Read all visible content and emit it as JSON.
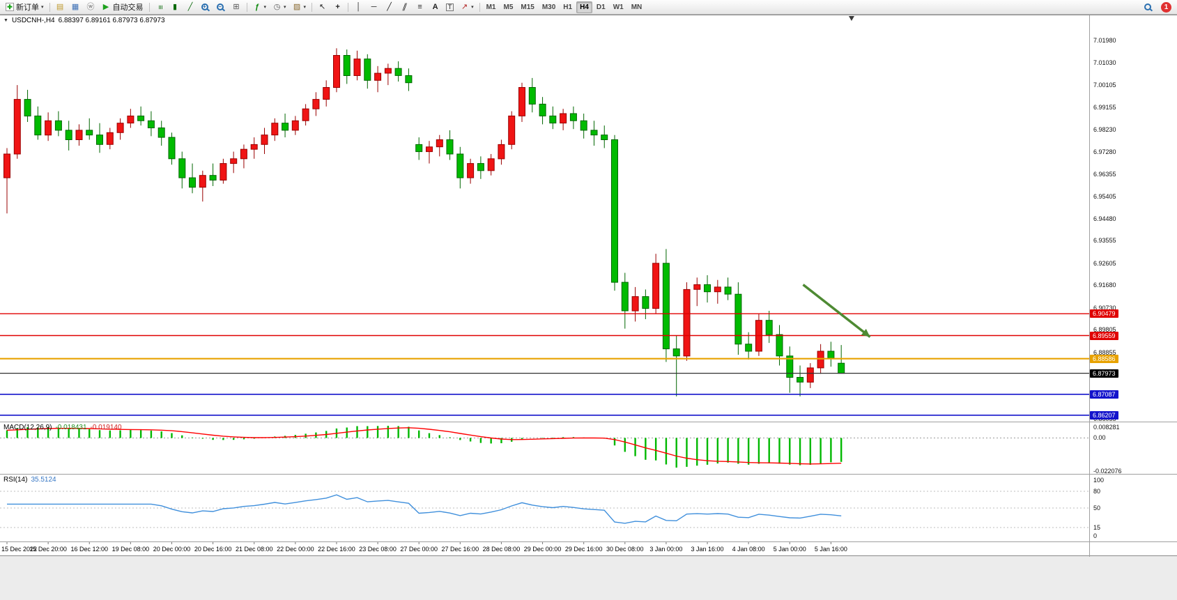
{
  "toolbar": {
    "items": [
      {
        "kind": "labeled",
        "name": "new-order-button",
        "icon": "new-order-icon",
        "label": "新订单",
        "caret": true
      },
      {
        "kind": "sep"
      },
      {
        "kind": "icon",
        "name": "new-chart-button",
        "icon": "new-chart-icon"
      },
      {
        "kind": "icon",
        "name": "profiles-button",
        "icon": "profiles-icon"
      },
      {
        "kind": "icon",
        "name": "community-button",
        "icon": "community-icon"
      },
      {
        "kind": "labeled",
        "name": "autotrading-button",
        "icon": "autotrading-icon",
        "label": "自动交易"
      },
      {
        "kind": "sep"
      },
      {
        "kind": "icon",
        "name": "bar-chart-button",
        "icon": "bar-chart-icon"
      },
      {
        "kind": "icon",
        "name": "candles-button",
        "icon": "candlestick-icon"
      },
      {
        "kind": "icon",
        "name": "line-chart-button",
        "icon": "line-chart-icon"
      },
      {
        "kind": "icon",
        "name": "zoom-in-button",
        "icon": "zoom-in-icon"
      },
      {
        "kind": "icon",
        "name": "zoom-out-button",
        "icon": "zoom-out-icon"
      },
      {
        "kind": "icon",
        "name": "tile-windows-button",
        "icon": "tile-windows-icon"
      },
      {
        "kind": "sep"
      },
      {
        "kind": "icon",
        "name": "indicators-button",
        "icon": "indicators-icon",
        "caret": true
      },
      {
        "kind": "icon",
        "name": "periods-button",
        "icon": "clock-icon",
        "caret": true
      },
      {
        "kind": "icon",
        "name": "templates-button",
        "icon": "template-icon",
        "caret": true
      },
      {
        "kind": "sep"
      },
      {
        "kind": "icon",
        "name": "cursor-button",
        "icon": "cursor-icon"
      },
      {
        "kind": "icon",
        "name": "crosshair-button",
        "icon": "crosshair-icon"
      },
      {
        "kind": "sep"
      },
      {
        "kind": "icon",
        "name": "vertical-line-button",
        "icon": "vertical-line-icon"
      },
      {
        "kind": "icon",
        "name": "horizontal-line-button",
        "icon": "horizontal-line-icon"
      },
      {
        "kind": "icon",
        "name": "trendline-button",
        "icon": "trendline-icon"
      },
      {
        "kind": "icon",
        "name": "channel-button",
        "icon": "channel-icon"
      },
      {
        "kind": "icon",
        "name": "fibonacci-button",
        "icon": "fibonacci-icon"
      },
      {
        "kind": "icon",
        "name": "text-button",
        "icon": "text-icon"
      },
      {
        "kind": "icon",
        "name": "label-button",
        "icon": "label-icon"
      },
      {
        "kind": "icon",
        "name": "arrows-button",
        "icon": "arrow-icon",
        "caret": true
      },
      {
        "kind": "sep"
      },
      {
        "kind": "timeframes"
      },
      {
        "kind": "spacer"
      },
      {
        "kind": "icon",
        "name": "search-button",
        "icon": "search-icon"
      },
      {
        "kind": "badge",
        "name": "notification-badge",
        "label": "1"
      }
    ],
    "timeframes": [
      "M1",
      "M5",
      "M15",
      "M30",
      "H1",
      "H4",
      "D1",
      "W1",
      "MN"
    ],
    "active_timeframe": "H4"
  },
  "icons": {
    "new-order-icon": {
      "ch": "✚",
      "col": "#15a215",
      "cls": "frame"
    },
    "new-chart-icon": {
      "ch": "▤",
      "col": "#c09a2e"
    },
    "profiles-icon": {
      "ch": "▦",
      "col": "#3b6fb5"
    },
    "community-icon": {
      "ch": "ⓦ",
      "col": "#6a6a6a"
    },
    "autotrading-icon": {
      "ch": "▶",
      "col": "#1da11d"
    },
    "bar-chart-icon": {
      "ch": "≡",
      "col": "#0a6a0a",
      "cls": "rot"
    },
    "candlestick-icon": {
      "ch": "▮",
      "col": "#0a6a0a"
    },
    "line-chart-icon": {
      "ch": "╱",
      "col": "#0a6a0a"
    },
    "zoom-in-icon": {
      "ch": "+",
      "col": "#2a6fb0",
      "cls": "mag"
    },
    "zoom-out-icon": {
      "ch": "−",
      "col": "#2a6fb0",
      "cls": "mag"
    },
    "tile-windows-icon": {
      "ch": "⊞",
      "col": "#555555"
    },
    "indicators-icon": {
      "ch": "ƒ",
      "col": "#0a870a",
      "cls": "bold"
    },
    "clock-icon": {
      "ch": "◷",
      "col": "#555555"
    },
    "template-icon": {
      "ch": "▨",
      "col": "#8a6a30"
    },
    "cursor-icon": {
      "ch": "↖",
      "col": "#222222"
    },
    "crosshair-icon": {
      "ch": "+",
      "col": "#222222",
      "cls": "bold"
    },
    "vertical-line-icon": {
      "ch": "│",
      "col": "#222222"
    },
    "horizontal-line-icon": {
      "ch": "─",
      "col": "#222222"
    },
    "trendline-icon": {
      "ch": "╱",
      "col": "#222222"
    },
    "channel-icon": {
      "ch": "∥",
      "col": "#222222",
      "cls": "slant"
    },
    "fibonacci-icon": {
      "ch": "≡",
      "col": "#222222"
    },
    "text-icon": {
      "ch": "A",
      "col": "#222222",
      "cls": "bold"
    },
    "label-icon": {
      "ch": "T",
      "col": "#222222",
      "cls": "boxed"
    },
    "arrow-icon": {
      "ch": "↗",
      "col": "#b22222"
    },
    "search-icon": {
      "ch": "",
      "col": "#2a6fb0",
      "cls": "mag"
    },
    "collapse-triangle-icon": {
      "ch": "▼",
      "col": "#333333"
    },
    "dropdown-caret-icon": {
      "ch": "▾",
      "col": "#333333"
    }
  },
  "chart_header": {
    "symbol_period": "USDCNH-,H4",
    "ohlc_text": "6.88397 6.89161 6.87973 6.87973"
  },
  "chart_data": {
    "type": "candlestick",
    "symbol": "USDCNH",
    "period": "H4",
    "bars_per_label": 4,
    "price_axis": {
      "view_top": 7.03036,
      "view_bottom": 6.85909,
      "labels": [
        7.0198,
        7.0103,
        7.00105,
        6.99155,
        6.9823,
        6.9728,
        6.96355,
        6.95405,
        6.9448,
        6.93555,
        6.92605,
        6.9168,
        6.9073,
        6.89805,
        6.88855,
        6.8793,
        6.8698,
        6.86055
      ]
    },
    "time_labels": [
      "15 Dec 2022",
      "15 Dec 20:00",
      "16 Dec 12:00",
      "19 Dec 08:00",
      "20 Dec 00:00",
      "20 Dec 16:00",
      "21 Dec 08:00",
      "22 Dec 00:00",
      "22 Dec 16:00",
      "23 Dec 08:00",
      "27 Dec 00:00",
      "27 Dec 16:00",
      "28 Dec 08:00",
      "29 Dec 00:00",
      "29 Dec 16:00",
      "30 Dec 08:00",
      "3 Jan 00:00",
      "3 Jan 16:00",
      "4 Jan 08:00",
      "5 Jan 00:00",
      "5 Jan 16:00"
    ],
    "colors": {
      "bull": "#f01414",
      "bull_border": "#990000",
      "bear": "#00bb00",
      "bear_border": "#006600",
      "background": "#ffffff"
    },
    "candles": [
      [
        6.962,
        6.9745,
        6.947,
        6.972
      ],
      [
        6.972,
        7.001,
        6.97,
        6.995
      ],
      [
        6.995,
        6.999,
        6.9855,
        6.988
      ],
      [
        6.988,
        6.992,
        6.978,
        6.98
      ],
      [
        6.98,
        6.9895,
        6.9775,
        6.986
      ],
      [
        6.986,
        6.99,
        6.9795,
        6.982
      ],
      [
        6.982,
        6.986,
        6.9735,
        6.978
      ],
      [
        6.978,
        6.9845,
        6.9755,
        6.982
      ],
      [
        6.982,
        6.987,
        6.978,
        6.98
      ],
      [
        6.98,
        6.985,
        6.9725,
        6.976
      ],
      [
        6.976,
        6.983,
        6.974,
        6.981
      ],
      [
        6.981,
        6.987,
        6.978,
        6.985
      ],
      [
        6.985,
        6.991,
        6.983,
        6.988
      ],
      [
        6.988,
        6.992,
        6.984,
        6.986
      ],
      [
        6.986,
        6.99,
        6.9795,
        6.983
      ],
      [
        6.983,
        6.986,
        6.9755,
        6.979
      ],
      [
        6.979,
        6.981,
        6.9675,
        6.97
      ],
      [
        6.97,
        6.973,
        6.9575,
        6.962
      ],
      [
        6.962,
        6.968,
        6.9555,
        6.958
      ],
      [
        6.958,
        6.965,
        6.952,
        6.963
      ],
      [
        6.963,
        6.968,
        6.9585,
        6.961
      ],
      [
        6.961,
        6.97,
        6.9595,
        6.968
      ],
      [
        6.968,
        6.973,
        6.964,
        6.97
      ],
      [
        6.97,
        6.976,
        6.966,
        6.974
      ],
      [
        6.974,
        6.979,
        6.97,
        6.976
      ],
      [
        6.976,
        6.983,
        6.972,
        6.98
      ],
      [
        6.98,
        6.987,
        6.9775,
        6.985
      ],
      [
        6.985,
        6.989,
        6.979,
        6.982
      ],
      [
        6.982,
        6.988,
        6.98,
        6.986
      ],
      [
        6.986,
        6.993,
        6.984,
        6.991
      ],
      [
        6.991,
        6.998,
        6.988,
        6.995
      ],
      [
        6.995,
        7.003,
        6.992,
        7.0
      ],
      [
        7.0,
        7.0165,
        6.998,
        7.0135
      ],
      [
        7.0135,
        7.016,
        7.0015,
        7.005
      ],
      [
        7.005,
        7.0155,
        7.003,
        7.012
      ],
      [
        7.012,
        7.014,
        6.9995,
        7.003
      ],
      [
        7.003,
        7.009,
        6.998,
        7.006
      ],
      [
        7.006,
        7.01,
        7.001,
        7.008
      ],
      [
        7.008,
        7.011,
        7.0025,
        7.005
      ],
      [
        7.005,
        7.008,
        6.9985,
        7.002
      ],
      [
        6.976,
        6.979,
        6.9695,
        6.973
      ],
      [
        6.973,
        6.9775,
        6.968,
        6.975
      ],
      [
        6.975,
        6.98,
        6.971,
        6.978
      ],
      [
        6.978,
        6.982,
        6.9695,
        6.972
      ],
      [
        6.972,
        6.975,
        6.9575,
        6.962
      ],
      [
        6.962,
        6.97,
        6.9595,
        6.968
      ],
      [
        6.968,
        6.971,
        6.9615,
        6.965
      ],
      [
        6.965,
        6.972,
        6.963,
        6.97
      ],
      [
        6.97,
        6.978,
        6.9675,
        6.976
      ],
      [
        6.976,
        6.99,
        6.974,
        6.988
      ],
      [
        6.988,
        7.002,
        6.9855,
        7.0
      ],
      [
        7.0,
        7.004,
        6.9895,
        6.993
      ],
      [
        6.993,
        6.996,
        6.9845,
        6.988
      ],
      [
        6.988,
        6.992,
        6.9825,
        6.985
      ],
      [
        6.985,
        6.991,
        6.982,
        6.989
      ],
      [
        6.989,
        6.992,
        6.9825,
        6.986
      ],
      [
        6.986,
        6.989,
        6.9785,
        6.982
      ],
      [
        6.982,
        6.986,
        6.9755,
        6.98
      ],
      [
        6.98,
        6.984,
        6.9745,
        6.978
      ],
      [
        6.978,
        6.98,
        6.9145,
        6.918
      ],
      [
        6.918,
        6.922,
        6.8985,
        6.906
      ],
      [
        6.906,
        6.916,
        6.9015,
        6.912
      ],
      [
        6.912,
        6.915,
        6.9025,
        6.907
      ],
      [
        6.907,
        6.93,
        6.905,
        6.926
      ],
      [
        6.926,
        6.932,
        6.8845,
        6.89
      ],
      [
        6.89,
        6.8955,
        6.87,
        6.887
      ],
      [
        6.887,
        6.918,
        6.885,
        6.915
      ],
      [
        6.915,
        6.92,
        6.908,
        6.917
      ],
      [
        6.917,
        6.921,
        6.9095,
        6.914
      ],
      [
        6.914,
        6.919,
        6.909,
        6.916
      ],
      [
        6.916,
        6.92,
        6.9105,
        6.913
      ],
      [
        6.913,
        6.918,
        6.8875,
        6.892
      ],
      [
        6.892,
        6.897,
        6.8855,
        6.889
      ],
      [
        6.889,
        6.905,
        6.887,
        6.902
      ],
      [
        6.902,
        6.906,
        6.8925,
        6.896
      ],
      [
        6.896,
        6.9,
        6.883,
        6.887
      ],
      [
        6.887,
        6.891,
        6.8715,
        6.878
      ],
      [
        6.878,
        6.883,
        6.87,
        6.876
      ],
      [
        6.876,
        6.884,
        6.8735,
        6.882
      ],
      [
        6.882,
        6.892,
        6.8795,
        6.889
      ],
      [
        6.889,
        6.893,
        6.8825,
        6.886
      ],
      [
        6.88397,
        6.89161,
        6.87973,
        6.87973
      ]
    ],
    "levels": [
      {
        "price": 6.90479,
        "label": "6.90479",
        "color": "#e00000",
        "width": 1.4
      },
      {
        "price": 6.89559,
        "label": "6.89559",
        "color": "#e00000",
        "width": 1.4
      },
      {
        "price": 6.88586,
        "label": "6.88586",
        "color": "#e8a200",
        "width": 2.2
      },
      {
        "price": 6.87087,
        "label": "6.87087",
        "color": "#1414cc",
        "width": 1.6
      },
      {
        "price": 6.86207,
        "label": "6.86207",
        "color": "#1414cc",
        "width": 1.6
      }
    ],
    "current_price": {
      "price": 6.87973,
      "label": "6.87973",
      "line_color": "#303030",
      "tag_color": "#000000"
    },
    "arrow": {
      "color": "#4e8a33",
      "width": 3.5,
      "from": {
        "bar": 77.3,
        "price": 6.917
      },
      "to": {
        "bar": 83.8,
        "price": 6.895
      }
    },
    "shift_marker_bar": 82,
    "macd": {
      "label": "MACD(12,26,9)",
      "value": "-0.018431",
      "signal_value": "-0.019140",
      "axis_max_label": "0.008281",
      "axis_zero_label": "0.00",
      "axis_min_label": "-0.022076",
      "histogram_color": "#00b800",
      "signal_color": "#ff0000"
    },
    "rsi": {
      "label": "RSI(14)",
      "value": "35.5124",
      "line_color": "#3f8fdc",
      "levels": [
        80,
        50,
        15
      ],
      "axis_labels": [
        100,
        80,
        50,
        15,
        0
      ],
      "range": [
        0,
        100
      ]
    }
  }
}
